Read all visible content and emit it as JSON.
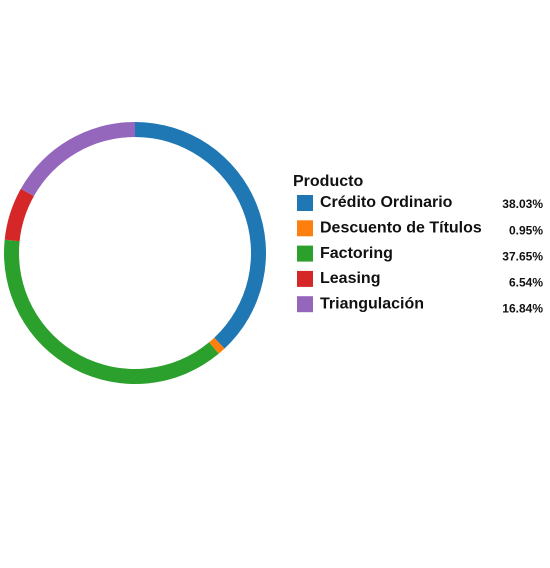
{
  "chart_data": {
    "type": "pie",
    "legend_title": "Producto",
    "categories": [
      "Crédito Ordinario",
      "Descuento de Títulos",
      "Factoring",
      "Leasing",
      "Triangulación"
    ],
    "values": [
      38.03,
      0.95,
      37.65,
      6.54,
      16.84
    ],
    "value_labels": [
      "38.03%",
      "0.95%",
      "37.65%",
      "6.54%",
      "16.84%"
    ],
    "colors": [
      "#1f77b4",
      "#ff7f0e",
      "#2ca02c",
      "#d62728",
      "#9467bd"
    ]
  }
}
